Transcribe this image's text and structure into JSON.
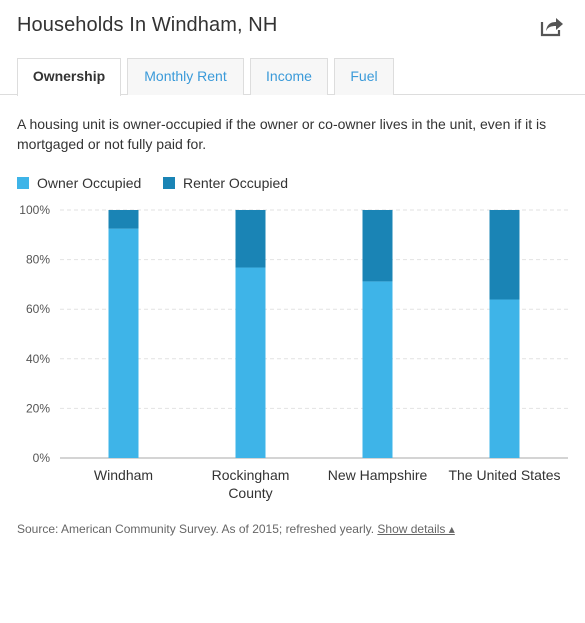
{
  "header": {
    "title": "Households In Windham, NH",
    "share_icon": "share-icon"
  },
  "tabs": [
    {
      "label": "Ownership",
      "active": true
    },
    {
      "label": "Monthly Rent",
      "active": false
    },
    {
      "label": "Income",
      "active": false
    },
    {
      "label": "Fuel",
      "active": false
    }
  ],
  "description": "A housing unit is owner-occupied if the owner or co-owner lives in the unit, even if it is mortgaged or not fully paid for.",
  "legend": [
    {
      "label": "Owner Occupied",
      "color": "#3eb4e8"
    },
    {
      "label": "Renter Occupied",
      "color": "#1a84b5"
    }
  ],
  "chart_data": {
    "type": "bar",
    "stacked": true,
    "categories": [
      "Windham",
      "Rockingham\nCounty",
      "New Hampshire",
      "The United States"
    ],
    "series": [
      {
        "name": "Owner Occupied",
        "color": "#3eb4e8",
        "values": [
          92.5,
          76.8,
          71.2,
          63.9
        ]
      },
      {
        "name": "Renter Occupied",
        "color": "#1a84b5",
        "values": [
          7.5,
          23.2,
          28.8,
          36.1
        ]
      }
    ],
    "yticks": [
      "0%",
      "20%",
      "40%",
      "60%",
      "80%",
      "100%"
    ],
    "ylim": [
      0,
      100
    ],
    "grid": true,
    "legend_position": "top-left"
  },
  "footer": {
    "source_text": "Source: American Community Survey. As of 2015; refreshed yearly.",
    "details_link": "Show details ▴"
  }
}
